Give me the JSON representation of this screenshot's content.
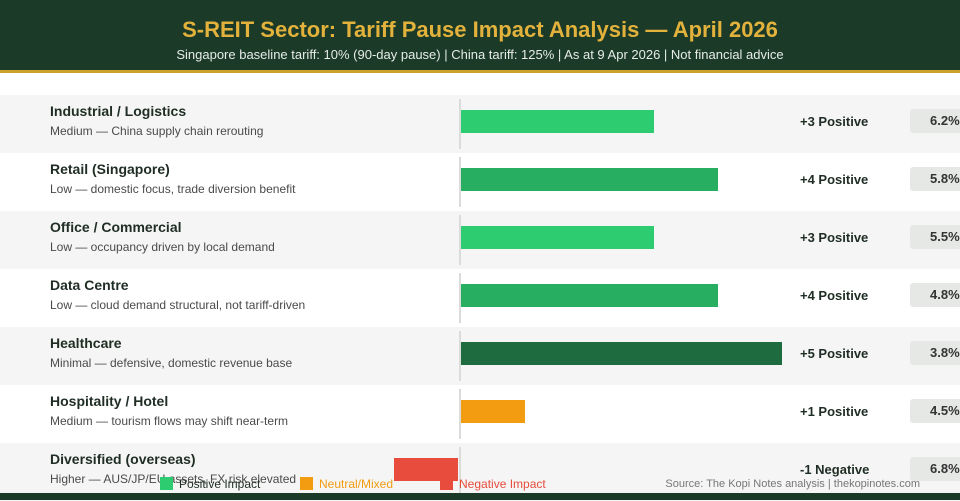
{
  "header": {
    "title": "S-REIT Sector: Tariff Pause Impact Analysis — April 2026",
    "subtitle": "Singapore baseline tariff: 10% (90-day pause) | China tariff: 125% | As at 9 Apr 2026 | Not financial advice"
  },
  "colors": {
    "positive_light": "#2ecc71",
    "positive_mid": "#27ae60",
    "positive_dark": "#1e6b40",
    "neutral": "#f39c12",
    "negative": "#e74c3c"
  },
  "chart_data": {
    "type": "bar",
    "orientation": "horizontal",
    "categories": [
      "Industrial / Logistics",
      "Retail (Singapore)",
      "Office / Commercial",
      "Data Centre",
      "Healthcare",
      "Hospitality / Hotel",
      "Diversified (overseas)"
    ],
    "exposure": [
      "Medium — China supply chain rerouting",
      "Low — domestic focus, trade diversion benefit",
      "Low — occupancy driven by local demand",
      "Low — cloud demand structural, not tariff-driven",
      "Minimal — defensive, domestic revenue base",
      "Medium — tourism flows may shift near-term",
      "Higher — AUS/JP/EU assets, FX risk elevated"
    ],
    "values": [
      3,
      4,
      3,
      4,
      5,
      1,
      -1
    ],
    "score_labels": [
      "+3 Positive",
      "+4 Positive",
      "+3 Positive",
      "+4 Positive",
      "+5 Positive",
      "+1 Positive",
      "-1 Negative"
    ],
    "yields": [
      "6.2%",
      "5.8%",
      "5.5%",
      "4.8%",
      "3.8%",
      "4.5%",
      "6.8%"
    ],
    "legend": [
      {
        "label": "Positive Impact",
        "color": "#2ecc71"
      },
      {
        "label": "Neutral/Mixed",
        "color": "#f39c12"
      },
      {
        "label": "Negative Impact",
        "color": "#e74c3c"
      }
    ]
  },
  "footer": {
    "source": "Source: The Kopi Notes analysis | thekopinotes.com"
  }
}
